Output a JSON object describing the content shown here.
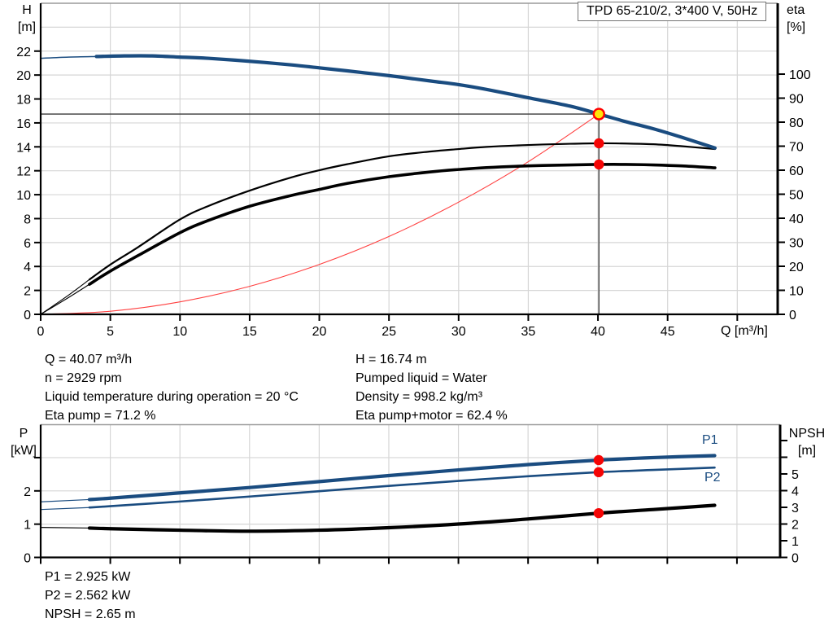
{
  "title_box": "TPD 65-210/2, 3*400 V, 50Hz",
  "colors": {
    "curve_blue": "#1a4c80",
    "curve_black": "#000000",
    "system_red": "#ff4040",
    "marker_red": "#f50505",
    "marker_yellow": "#ffe60a",
    "grid": "#d6d6d6",
    "axis": "#000000",
    "crosshair": "#3a3a3a",
    "frame_top": "#9a9a9a"
  },
  "axis_titles": {
    "h_top": "H",
    "h_unit": "[m]",
    "eta_top": "eta",
    "eta_unit": "[%]",
    "q": "Q [m³/h]",
    "p_top": "P",
    "p_unit": "[kW]",
    "npsh_top": "NPSH",
    "npsh_unit": "[m]"
  },
  "series_labels": {
    "p1": "P1",
    "p2": "P2"
  },
  "info": {
    "left": [
      "Q = 40.07 m³/h",
      "n = 2929 rpm",
      "Liquid temperature during operation = 20 °C",
      "Eta pump = 71.2 %"
    ],
    "right": [
      "H = 16.74 m",
      "Pumped liquid = Water",
      "Density = 998.2 kg/m³",
      "Eta pump+motor = 62.4 %"
    ]
  },
  "results": [
    "P1 = 2.925 kW",
    "P2 = 2.562 kW",
    "NPSH = 2.65 m"
  ],
  "chart_data": [
    {
      "id": "qh",
      "type": "line",
      "title": "TPD 65-210/2, 3*400 V, 50Hz",
      "x": {
        "label": "Q [m³/h]",
        "min": 0,
        "max": 52.9,
        "ticks": [
          0,
          5,
          10,
          15,
          20,
          25,
          30,
          35,
          40,
          45,
          50
        ],
        "labeled": [
          0,
          5,
          10,
          15,
          20,
          25,
          30,
          35,
          40,
          45
        ],
        "grid": [
          5,
          10,
          15,
          20,
          25,
          30,
          35,
          40,
          45,
          50
        ]
      },
      "left": {
        "label": "H [m]",
        "min": 0,
        "max": 26.0,
        "ticks": [
          0,
          2,
          4,
          6,
          8,
          10,
          12,
          14,
          16,
          18,
          20,
          22
        ],
        "labeled": [
          0,
          2,
          4,
          6,
          8,
          10,
          12,
          14,
          16,
          18,
          20,
          22
        ],
        "grid": [
          2,
          4,
          6,
          8,
          10,
          12,
          14,
          16,
          18,
          20,
          22,
          24
        ]
      },
      "right": {
        "label": "eta [%]",
        "min": 0,
        "max": 129.5,
        "ticks": [
          0,
          10,
          20,
          30,
          40,
          50,
          60,
          70,
          80,
          90,
          100
        ],
        "labeled": [
          0,
          10,
          20,
          30,
          40,
          50,
          60,
          70,
          80,
          90,
          100
        ]
      },
      "crosshair": {
        "q": 40.07,
        "h": 16.74
      },
      "series": [
        {
          "name": "system-curve",
          "axis": "left",
          "color": "#ff4040",
          "thin": 1.1,
          "thick": 1.1,
          "thin_until": 99,
          "points": [
            [
              0,
              0
            ],
            [
              5,
              0.26
            ],
            [
              10,
              1.04
            ],
            [
              15,
              2.34
            ],
            [
              20,
              4.17
            ],
            [
              25,
              6.51
            ],
            [
              30,
              9.38
            ],
            [
              35,
              12.76
            ],
            [
              40.07,
              16.74
            ]
          ]
        },
        {
          "name": "eta-pump-motor",
          "axis": "right",
          "color": "#000000",
          "thin": 1.1,
          "thick": 3.6,
          "thin_until": 3.5,
          "points": [
            [
              0,
              0
            ],
            [
              2,
              7
            ],
            [
              3.5,
              12.5
            ],
            [
              5,
              18
            ],
            [
              7,
              24.5
            ],
            [
              10,
              34
            ],
            [
              12,
              39
            ],
            [
              15,
              45
            ],
            [
              18,
              49.5
            ],
            [
              20,
              52
            ],
            [
              22,
              54.5
            ],
            [
              25,
              57.3
            ],
            [
              28,
              59.3
            ],
            [
              30,
              60.3
            ],
            [
              32,
              61.1
            ],
            [
              35,
              61.8
            ],
            [
              38,
              62.2
            ],
            [
              40.07,
              62.4
            ],
            [
              42,
              62.4
            ],
            [
              44,
              62.2
            ],
            [
              46,
              61.8
            ],
            [
              48.4,
              61
            ]
          ]
        },
        {
          "name": "eta-pump",
          "axis": "right",
          "color": "#000000",
          "thin": 1.1,
          "thick": 2.2,
          "thin_until": 3.5,
          "points": [
            [
              0,
              0
            ],
            [
              2,
              8
            ],
            [
              3.5,
              14.5
            ],
            [
              5,
              20.7
            ],
            [
              7,
              28
            ],
            [
              10,
              39.5
            ],
            [
              12,
              45
            ],
            [
              15,
              51.5
            ],
            [
              18,
              57
            ],
            [
              20,
              60
            ],
            [
              22,
              62.5
            ],
            [
              25,
              65.8
            ],
            [
              28,
              67.8
            ],
            [
              30,
              68.8
            ],
            [
              32,
              69.7
            ],
            [
              35,
              70.5
            ],
            [
              38,
              71
            ],
            [
              40.07,
              71.2
            ],
            [
              42,
              71.1
            ],
            [
              44,
              70.8
            ],
            [
              46,
              70
            ],
            [
              48.4,
              68.8
            ]
          ]
        },
        {
          "name": "head",
          "axis": "left",
          "color": "#1a4c80",
          "thin": 1.5,
          "thick": 4.2,
          "thin_until": 3.5,
          "points": [
            [
              0,
              21.4
            ],
            [
              2,
              21.5
            ],
            [
              4,
              21.55
            ],
            [
              6,
              21.6
            ],
            [
              8,
              21.6
            ],
            [
              10,
              21.5
            ],
            [
              12,
              21.4
            ],
            [
              15,
              21.15
            ],
            [
              18,
              20.85
            ],
            [
              20,
              20.6
            ],
            [
              22,
              20.35
            ],
            [
              25,
              19.95
            ],
            [
              28,
              19.5
            ],
            [
              30,
              19.2
            ],
            [
              32,
              18.8
            ],
            [
              35,
              18.1
            ],
            [
              38,
              17.4
            ],
            [
              40.07,
              16.74
            ],
            [
              42,
              16.1
            ],
            [
              44,
              15.5
            ],
            [
              46,
              14.8
            ],
            [
              48.4,
              13.9
            ]
          ]
        }
      ],
      "markers": [
        {
          "name": "eta-pump-point",
          "q": 40.07,
          "v": 71.2,
          "axis": "right",
          "r": 6.2,
          "fill": "#f50505",
          "stroke": "none",
          "sw": 0
        },
        {
          "name": "eta-pump-motor-point",
          "q": 40.07,
          "v": 62.4,
          "axis": "right",
          "r": 6.2,
          "fill": "#f50505",
          "stroke": "none",
          "sw": 0
        },
        {
          "name": "duty-point",
          "q": 40.07,
          "v": 16.74,
          "axis": "left",
          "r": 6.5,
          "fill": "#ffe60a",
          "stroke": "#ff0000",
          "sw": 2.4
        }
      ]
    },
    {
      "id": "power",
      "type": "line",
      "x": {
        "label": "",
        "min": 0,
        "max": 53.1,
        "ticks": [
          0,
          5,
          10,
          15,
          20,
          25,
          30,
          35,
          40,
          45,
          50
        ],
        "labeled": [],
        "grid": [
          5,
          10,
          15,
          20,
          25,
          30,
          35,
          40,
          45,
          50
        ]
      },
      "left": {
        "label": "P [kW]",
        "min": 0,
        "max": 3.99,
        "ticks": [
          0,
          1,
          2,
          3
        ],
        "labeled": [
          0,
          1,
          2
        ],
        "grid": [
          1,
          2,
          3
        ]
      },
      "right": {
        "label": "NPSH [m]",
        "min": 0,
        "max": 7.95,
        "ticks": [
          0,
          1,
          2,
          3,
          4,
          5,
          6,
          7
        ],
        "labeled": [
          0,
          1,
          2,
          3,
          4,
          5
        ]
      },
      "series": [
        {
          "name": "npsh",
          "axis": "right",
          "color": "#000000",
          "thin": 1.2,
          "thick": 4.2,
          "thin_until": 3.5,
          "points": [
            [
              0,
              1.8
            ],
            [
              3.5,
              1.76
            ],
            [
              5,
              1.72
            ],
            [
              10,
              1.63
            ],
            [
              15,
              1.57
            ],
            [
              20,
              1.63
            ],
            [
              25,
              1.78
            ],
            [
              30,
              2.0
            ],
            [
              35,
              2.3
            ],
            [
              40.07,
              2.65
            ],
            [
              44,
              2.87
            ],
            [
              48.4,
              3.12
            ]
          ]
        },
        {
          "name": "p2",
          "axis": "left",
          "color": "#1a4c80",
          "thin": 1.2,
          "thick": 2.6,
          "thin_until": 3.5,
          "points": [
            [
              0,
              1.44
            ],
            [
              3.5,
              1.5
            ],
            [
              5,
              1.54
            ],
            [
              10,
              1.68
            ],
            [
              15,
              1.83
            ],
            [
              20,
              1.99
            ],
            [
              25,
              2.15
            ],
            [
              30,
              2.3
            ],
            [
              35,
              2.44
            ],
            [
              40.07,
              2.562
            ],
            [
              44,
              2.63
            ],
            [
              48.4,
              2.7
            ]
          ]
        },
        {
          "name": "p1",
          "axis": "left",
          "color": "#1a4c80",
          "thin": 1.2,
          "thick": 4.2,
          "thin_until": 3.5,
          "points": [
            [
              0,
              1.67
            ],
            [
              3.5,
              1.74
            ],
            [
              5,
              1.78
            ],
            [
              10,
              1.94
            ],
            [
              15,
              2.1
            ],
            [
              20,
              2.28
            ],
            [
              25,
              2.46
            ],
            [
              30,
              2.63
            ],
            [
              35,
              2.79
            ],
            [
              40.07,
              2.925
            ],
            [
              44,
              3.0
            ],
            [
              48.4,
              3.06
            ]
          ]
        }
      ],
      "markers": [
        {
          "name": "p1-point",
          "q": 40.07,
          "v": 2.925,
          "axis": "left",
          "r": 6.2,
          "fill": "#f50505",
          "stroke": "none",
          "sw": 0
        },
        {
          "name": "p2-point",
          "q": 40.07,
          "v": 2.562,
          "axis": "left",
          "r": 6.2,
          "fill": "#f50505",
          "stroke": "none",
          "sw": 0
        },
        {
          "name": "npsh-point",
          "q": 40.07,
          "v": 2.65,
          "axis": "right",
          "r": 6.2,
          "fill": "#f50505",
          "stroke": "none",
          "sw": 0
        }
      ]
    }
  ]
}
